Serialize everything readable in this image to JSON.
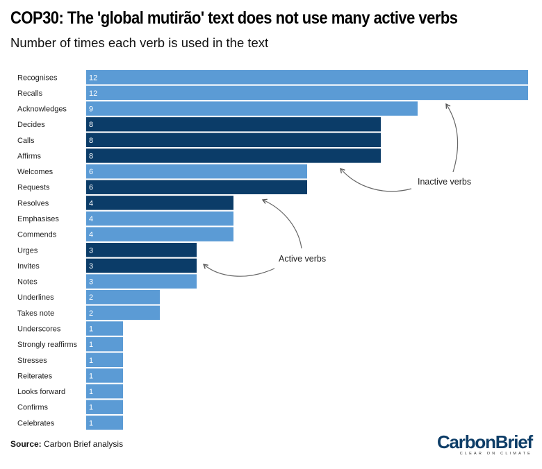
{
  "title": "COP30: The 'global mutirão' text does not use many active verbs",
  "subtitle": "Number of times each verb is used in the text",
  "footer": {
    "source_label": "Source:",
    "source_text": "Carbon Brief analysis"
  },
  "logo": {
    "text": "CarbonBrief",
    "tagline": "CLEAR ON CLIMATE"
  },
  "annotations": {
    "inactive": "Inactive verbs",
    "active": "Active verbs"
  },
  "colors": {
    "inactive": "#5b9bd5",
    "active": "#0b3c68"
  },
  "chart_data": {
    "type": "bar",
    "orientation": "horizontal",
    "categories": [
      "Recognises",
      "Recalls",
      "Acknowledges",
      "Decides",
      "Calls",
      "Affirms",
      "Welcomes",
      "Requests",
      "Resolves",
      "Emphasises",
      "Commends",
      "Urges",
      "Invites",
      "Notes",
      "Underlines",
      "Takes note",
      "Underscores",
      "Strongly reaffirms",
      "Stresses",
      "Reiterates",
      "Looks forward",
      "Confirms",
      "Celebrates"
    ],
    "values": [
      12,
      12,
      9,
      8,
      8,
      8,
      6,
      6,
      4,
      4,
      4,
      3,
      3,
      3,
      2,
      2,
      1,
      1,
      1,
      1,
      1,
      1,
      1
    ],
    "verb_type": [
      "inactive",
      "inactive",
      "inactive",
      "active",
      "active",
      "active",
      "inactive",
      "active",
      "active",
      "inactive",
      "inactive",
      "active",
      "active",
      "inactive",
      "inactive",
      "inactive",
      "inactive",
      "inactive",
      "inactive",
      "inactive",
      "inactive",
      "inactive",
      "inactive"
    ],
    "xlim": [
      0,
      12
    ],
    "grid": false,
    "legend": "none"
  }
}
